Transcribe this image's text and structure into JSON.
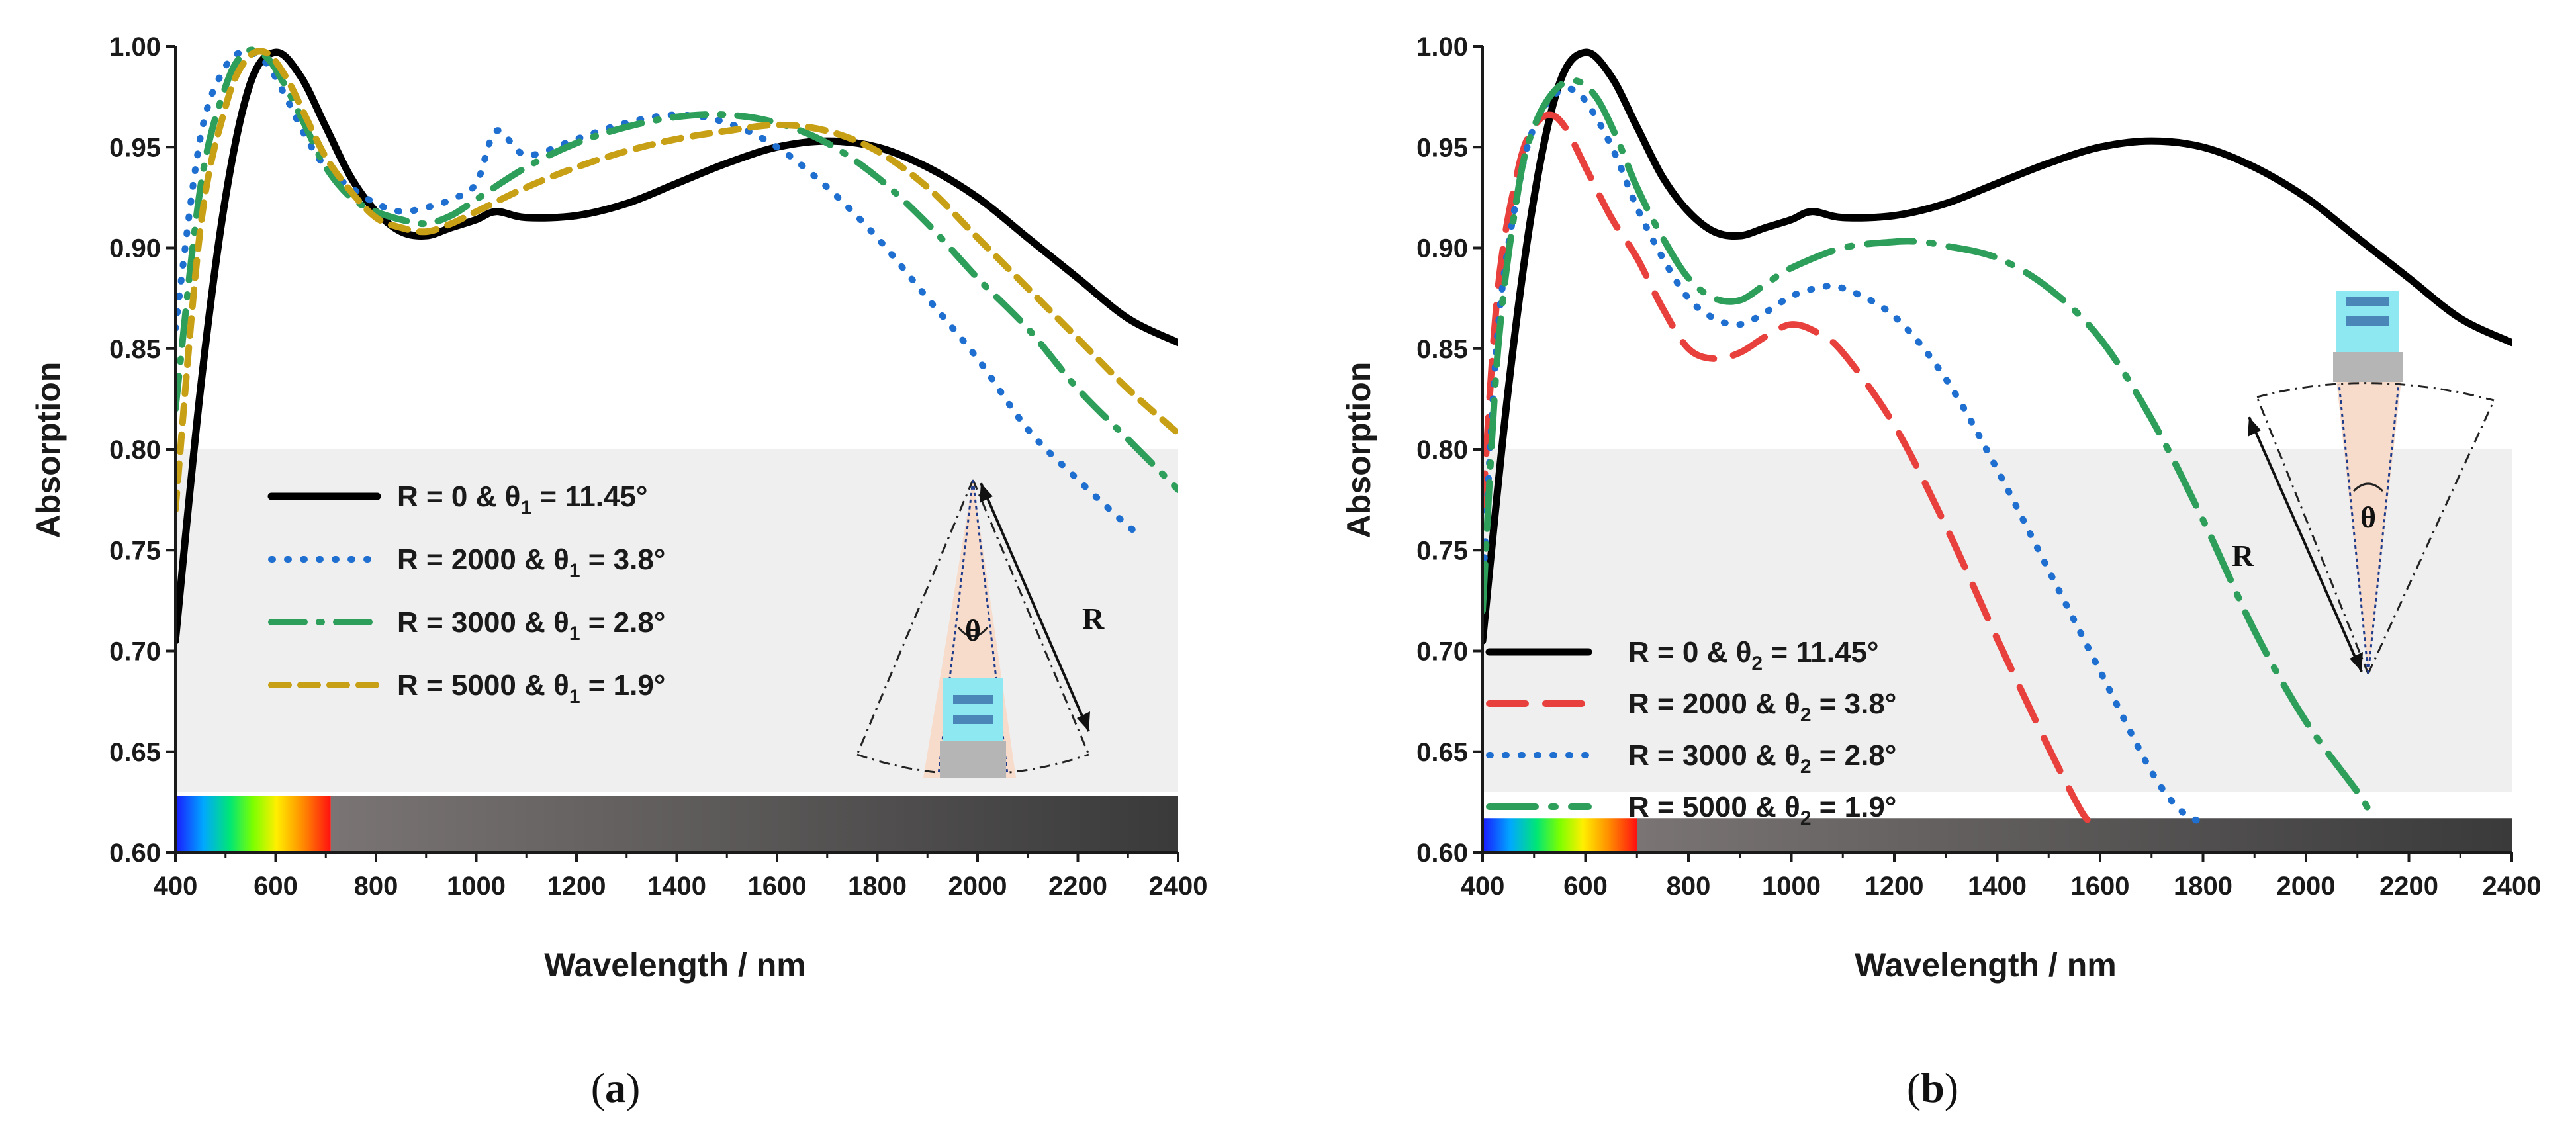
{
  "chart_data": [
    {
      "type": "line",
      "panel_label": "a",
      "xlabel": "Wavelength / nm",
      "ylabel": "Absorption",
      "xlim": [
        400,
        2400
      ],
      "ylim": [
        0.6,
        1.0
      ],
      "xticks": [
        400,
        600,
        800,
        1000,
        1200,
        1400,
        1600,
        1800,
        2000,
        2200,
        2400
      ],
      "yticks": [
        "0.60",
        "0.65",
        "0.70",
        "0.75",
        "0.80",
        "0.85",
        "0.90",
        "0.95",
        "1.00"
      ],
      "shaded_band": [
        0.63,
        0.8
      ],
      "spectrum_bar": {
        "y_range": [
          0.6,
          0.628
        ],
        "visible_end_nm": 710
      },
      "legend_position": "center-left",
      "inset_label": "R",
      "inset_angle_label": "θ",
      "series": [
        {
          "name": "R  =  0 & θ₁ = 11.45°",
          "label_main": "R  =  0 & θ",
          "label_sub": "1",
          "label_tail": " = 11.45°",
          "color": "#000000",
          "style": "solid",
          "x": [
            400,
            450,
            500,
            550,
            600,
            650,
            700,
            750,
            800,
            850,
            900,
            950,
            1000,
            1040,
            1100,
            1200,
            1300,
            1400,
            1500,
            1600,
            1700,
            1800,
            1900,
            2000,
            2100,
            2200,
            2300,
            2400
          ],
          "y": [
            0.705,
            0.83,
            0.925,
            0.982,
            0.997,
            0.985,
            0.96,
            0.935,
            0.918,
            0.908,
            0.906,
            0.91,
            0.914,
            0.918,
            0.915,
            0.916,
            0.922,
            0.932,
            0.942,
            0.95,
            0.953,
            0.95,
            0.94,
            0.925,
            0.905,
            0.885,
            0.865,
            0.853
          ]
        },
        {
          "name": "R  =  2000 & θ₁ = 3.8°",
          "label_main": "R  =  2000 & θ",
          "label_sub": "1",
          "label_tail": " = 3.8°",
          "color": "#1f6fd0",
          "style": "dotted",
          "x": [
            400,
            450,
            500,
            540,
            580,
            620,
            660,
            700,
            750,
            800,
            850,
            900,
            950,
            1000,
            1040,
            1100,
            1200,
            1300,
            1400,
            1500,
            1600,
            1700,
            1800,
            1900,
            2000,
            2100,
            2200,
            2300,
            2330
          ],
          "y": [
            0.86,
            0.955,
            0.99,
            0.997,
            0.992,
            0.975,
            0.955,
            0.94,
            0.93,
            0.922,
            0.918,
            0.92,
            0.924,
            0.932,
            0.958,
            0.946,
            0.954,
            0.962,
            0.966,
            0.962,
            0.95,
            0.93,
            0.905,
            0.875,
            0.845,
            0.81,
            0.785,
            0.762,
            0.757
          ]
        },
        {
          "name": "R  =  3000 & θ₁ = 2.8°",
          "label_main": "R  =  3000 & θ",
          "label_sub": "1",
          "label_tail": " = 2.8°",
          "color": "#2e9e5b",
          "style": "dashdot",
          "x": [
            400,
            450,
            500,
            540,
            580,
            620,
            660,
            700,
            750,
            800,
            850,
            900,
            950,
            1000,
            1100,
            1200,
            1300,
            1400,
            1500,
            1600,
            1700,
            1800,
            1900,
            2000,
            2100,
            2200,
            2300,
            2400
          ],
          "y": [
            0.82,
            0.93,
            0.98,
            0.997,
            0.995,
            0.98,
            0.96,
            0.94,
            0.925,
            0.918,
            0.914,
            0.912,
            0.916,
            0.924,
            0.94,
            0.952,
            0.96,
            0.965,
            0.966,
            0.962,
            0.952,
            0.935,
            0.912,
            0.885,
            0.86,
            0.83,
            0.805,
            0.78
          ]
        },
        {
          "name": "R  =  5000 & θ₁ = 1.9°",
          "label_main": "R  =  5000 & θ",
          "label_sub": "1",
          "label_tail": " = 1.9°",
          "color": "#c8a015",
          "style": "shortdash",
          "x": [
            400,
            450,
            500,
            540,
            580,
            620,
            660,
            700,
            750,
            800,
            850,
            900,
            950,
            1000,
            1100,
            1200,
            1300,
            1400,
            1500,
            1600,
            1700,
            1800,
            1900,
            2000,
            2100,
            2200,
            2300,
            2400
          ],
          "y": [
            0.77,
            0.91,
            0.97,
            0.993,
            0.997,
            0.985,
            0.965,
            0.945,
            0.928,
            0.915,
            0.91,
            0.908,
            0.912,
            0.918,
            0.93,
            0.94,
            0.948,
            0.954,
            0.958,
            0.961,
            0.958,
            0.948,
            0.93,
            0.905,
            0.88,
            0.855,
            0.83,
            0.808
          ]
        }
      ]
    },
    {
      "type": "line",
      "panel_label": "b",
      "xlabel": "Wavelength / nm",
      "ylabel": "Absorption",
      "xlim": [
        400,
        2400
      ],
      "ylim": [
        0.6,
        1.0
      ],
      "xticks": [
        400,
        600,
        800,
        1000,
        1200,
        1400,
        1600,
        1800,
        2000,
        2200,
        2400
      ],
      "yticks": [
        "0.60",
        "0.65",
        "0.70",
        "0.75",
        "0.80",
        "0.85",
        "0.90",
        "0.95",
        "1.00"
      ],
      "shaded_band": [
        0.63,
        0.8
      ],
      "spectrum_bar": {
        "y_range": [
          0.6,
          0.617
        ],
        "visible_end_nm": 700
      },
      "legend_position": "bottom-left",
      "inset_label": "R",
      "inset_angle_label": "θ",
      "series": [
        {
          "name": "R  =  0 & θ₂ = 11.45°",
          "label_main": "R  =  0 & θ",
          "label_sub": "2",
          "label_tail": " = 11.45°",
          "color": "#000000",
          "style": "solid",
          "x": [
            400,
            450,
            500,
            550,
            600,
            650,
            700,
            750,
            800,
            850,
            900,
            950,
            1000,
            1040,
            1100,
            1200,
            1300,
            1400,
            1500,
            1600,
            1700,
            1800,
            1900,
            2000,
            2100,
            2200,
            2300,
            2400
          ],
          "y": [
            0.705,
            0.83,
            0.925,
            0.982,
            0.997,
            0.985,
            0.96,
            0.935,
            0.918,
            0.908,
            0.906,
            0.91,
            0.914,
            0.918,
            0.915,
            0.916,
            0.922,
            0.932,
            0.942,
            0.95,
            0.953,
            0.95,
            0.94,
            0.925,
            0.905,
            0.885,
            0.865,
            0.853
          ]
        },
        {
          "name": "R  =  2000 & θ₂ = 3.8°",
          "label_main": "R  =  2000 & θ",
          "label_sub": "2",
          "label_tail": " = 3.8°",
          "color": "#e8403c",
          "style": "dashed",
          "x": [
            400,
            430,
            470,
            500,
            530,
            560,
            600,
            650,
            700,
            750,
            800,
            850,
            900,
            950,
            1000,
            1050,
            1100,
            1200,
            1300,
            1400,
            1500,
            1560,
            1580
          ],
          "y": [
            0.77,
            0.88,
            0.94,
            0.96,
            0.966,
            0.96,
            0.94,
            0.915,
            0.895,
            0.87,
            0.85,
            0.845,
            0.848,
            0.856,
            0.862,
            0.858,
            0.848,
            0.812,
            0.762,
            0.706,
            0.652,
            0.622,
            0.615
          ]
        },
        {
          "name": "R  =  3000 & θ₂ = 2.8°",
          "label_main": "R  =  3000 & θ",
          "label_sub": "2",
          "label_tail": " = 2.8°",
          "color": "#1f6fd0",
          "style": "dotted",
          "x": [
            400,
            430,
            470,
            500,
            540,
            580,
            620,
            660,
            700,
            750,
            800,
            850,
            900,
            950,
            1000,
            1050,
            1100,
            1200,
            1300,
            1400,
            1500,
            1600,
            1700,
            1760,
            1800
          ],
          "y": [
            0.73,
            0.86,
            0.93,
            0.96,
            0.976,
            0.978,
            0.965,
            0.945,
            0.92,
            0.895,
            0.875,
            0.865,
            0.862,
            0.868,
            0.876,
            0.88,
            0.88,
            0.866,
            0.835,
            0.79,
            0.74,
            0.69,
            0.64,
            0.62,
            0.615
          ]
        },
        {
          "name": "R  =  5000 & θ₂ = 1.9°",
          "label_main": "R  =  5000 & θ",
          "label_sub": "2",
          "label_tail": " = 1.9°",
          "color": "#2e9e5b",
          "style": "longdashdot",
          "x": [
            400,
            430,
            470,
            500,
            540,
            580,
            620,
            660,
            700,
            750,
            800,
            850,
            900,
            950,
            1000,
            1100,
            1200,
            1250,
            1300,
            1400,
            1500,
            1600,
            1700,
            1800,
            1900,
            2000,
            2100,
            2120
          ],
          "y": [
            0.72,
            0.85,
            0.93,
            0.96,
            0.978,
            0.983,
            0.975,
            0.955,
            0.93,
            0.905,
            0.885,
            0.875,
            0.874,
            0.882,
            0.89,
            0.9,
            0.903,
            0.903,
            0.901,
            0.895,
            0.88,
            0.855,
            0.815,
            0.765,
            0.71,
            0.665,
            0.63,
            0.622
          ]
        }
      ]
    }
  ]
}
